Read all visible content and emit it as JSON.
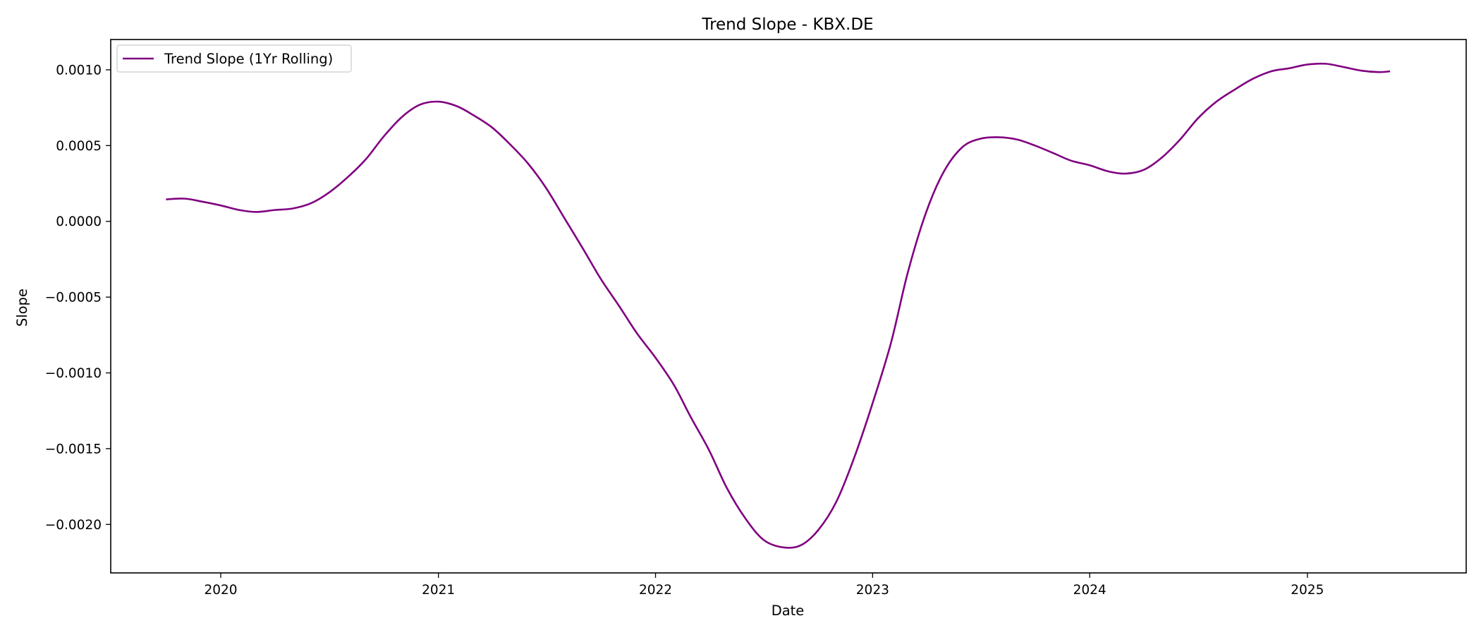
{
  "chart_data": {
    "type": "line",
    "title": "Trend Slope - KBX.DE",
    "xlabel": "Date",
    "ylabel": "Slope",
    "x_axis": "date",
    "xlim": [
      "2019-06-30",
      "2025-09-25"
    ],
    "ylim": [
      -0.00232,
      0.0012
    ],
    "grid": false,
    "legend_position": "top-left",
    "x_ticks": [
      {
        "date": "2020-01-01",
        "label": "2020"
      },
      {
        "date": "2021-01-01",
        "label": "2021"
      },
      {
        "date": "2022-01-01",
        "label": "2022"
      },
      {
        "date": "2023-01-01",
        "label": "2023"
      },
      {
        "date": "2024-01-01",
        "label": "2024"
      },
      {
        "date": "2025-01-01",
        "label": "2025"
      }
    ],
    "y_ticks": [
      {
        "value": 0.001,
        "label": "0.0010"
      },
      {
        "value": 0.0005,
        "label": "0.0005"
      },
      {
        "value": 0.0,
        "label": "0.0000"
      },
      {
        "value": -0.0005,
        "label": "−0.0005"
      },
      {
        "value": -0.001,
        "label": "−0.0010"
      },
      {
        "value": -0.0015,
        "label": "−0.0015"
      },
      {
        "value": -0.002,
        "label": "−0.0020"
      }
    ],
    "series": [
      {
        "name": "Trend Slope (1Yr Rolling)",
        "color": "#800080",
        "points": [
          {
            "x": "2019-10-01",
            "y": 0.000145
          },
          {
            "x": "2019-11-01",
            "y": 0.00015
          },
          {
            "x": "2019-12-01",
            "y": 0.00013
          },
          {
            "x": "2020-01-01",
            "y": 0.000105
          },
          {
            "x": "2020-02-01",
            "y": 7.5e-05
          },
          {
            "x": "2020-03-01",
            "y": 6.2e-05
          },
          {
            "x": "2020-04-01",
            "y": 7.5e-05
          },
          {
            "x": "2020-05-01",
            "y": 8.5e-05
          },
          {
            "x": "2020-06-01",
            "y": 0.00012
          },
          {
            "x": "2020-07-01",
            "y": 0.00019
          },
          {
            "x": "2020-08-01",
            "y": 0.00029
          },
          {
            "x": "2020-09-01",
            "y": 0.00041
          },
          {
            "x": "2020-10-01",
            "y": 0.00056
          },
          {
            "x": "2020-11-01",
            "y": 0.00069
          },
          {
            "x": "2020-12-01",
            "y": 0.00077
          },
          {
            "x": "2021-01-01",
            "y": 0.00079
          },
          {
            "x": "2021-02-01",
            "y": 0.00076
          },
          {
            "x": "2021-03-01",
            "y": 0.0007
          },
          {
            "x": "2021-04-01",
            "y": 0.00062
          },
          {
            "x": "2021-05-01",
            "y": 0.00051
          },
          {
            "x": "2021-06-01",
            "y": 0.00038
          },
          {
            "x": "2021-07-01",
            "y": 0.00022
          },
          {
            "x": "2021-08-01",
            "y": 2e-05
          },
          {
            "x": "2021-09-01",
            "y": -0.00018
          },
          {
            "x": "2021-10-01",
            "y": -0.00038
          },
          {
            "x": "2021-11-01",
            "y": -0.00056
          },
          {
            "x": "2021-12-01",
            "y": -0.00074
          },
          {
            "x": "2022-01-01",
            "y": -0.0009
          },
          {
            "x": "2022-02-01",
            "y": -0.00108
          },
          {
            "x": "2022-03-01",
            "y": -0.00129
          },
          {
            "x": "2022-04-01",
            "y": -0.00151
          },
          {
            "x": "2022-05-01",
            "y": -0.00176
          },
          {
            "x": "2022-06-01",
            "y": -0.00196
          },
          {
            "x": "2022-07-01",
            "y": -0.0021
          },
          {
            "x": "2022-08-01",
            "y": -0.00215
          },
          {
            "x": "2022-09-01",
            "y": -0.00214
          },
          {
            "x": "2022-10-01",
            "y": -0.00204
          },
          {
            "x": "2022-11-01",
            "y": -0.00185
          },
          {
            "x": "2022-12-01",
            "y": -0.00156
          },
          {
            "x": "2023-01-01",
            "y": -0.0012
          },
          {
            "x": "2023-02-01",
            "y": -0.0008
          },
          {
            "x": "2023-03-01",
            "y": -0.00034
          },
          {
            "x": "2023-04-01",
            "y": 6e-05
          },
          {
            "x": "2023-05-01",
            "y": 0.00033
          },
          {
            "x": "2023-06-01",
            "y": 0.00049
          },
          {
            "x": "2023-07-01",
            "y": 0.000545
          },
          {
            "x": "2023-08-01",
            "y": 0.000555
          },
          {
            "x": "2023-09-01",
            "y": 0.00054
          },
          {
            "x": "2023-10-01",
            "y": 0.0005
          },
          {
            "x": "2023-11-01",
            "y": 0.00045
          },
          {
            "x": "2023-12-01",
            "y": 0.0004
          },
          {
            "x": "2024-01-01",
            "y": 0.00037
          },
          {
            "x": "2024-02-01",
            "y": 0.00033
          },
          {
            "x": "2024-03-01",
            "y": 0.000315
          },
          {
            "x": "2024-04-01",
            "y": 0.00034
          },
          {
            "x": "2024-05-01",
            "y": 0.00042
          },
          {
            "x": "2024-06-01",
            "y": 0.00054
          },
          {
            "x": "2024-07-01",
            "y": 0.00068
          },
          {
            "x": "2024-08-01",
            "y": 0.00079
          },
          {
            "x": "2024-09-01",
            "y": 0.00087
          },
          {
            "x": "2024-10-01",
            "y": 0.00094
          },
          {
            "x": "2024-11-01",
            "y": 0.00099
          },
          {
            "x": "2024-12-01",
            "y": 0.00101
          },
          {
            "x": "2025-01-01",
            "y": 0.001035
          },
          {
            "x": "2025-02-01",
            "y": 0.00104
          },
          {
            "x": "2025-03-01",
            "y": 0.00102
          },
          {
            "x": "2025-04-01",
            "y": 0.000995
          },
          {
            "x": "2025-05-01",
            "y": 0.000985
          },
          {
            "x": "2025-05-20",
            "y": 0.00099
          }
        ]
      }
    ]
  }
}
